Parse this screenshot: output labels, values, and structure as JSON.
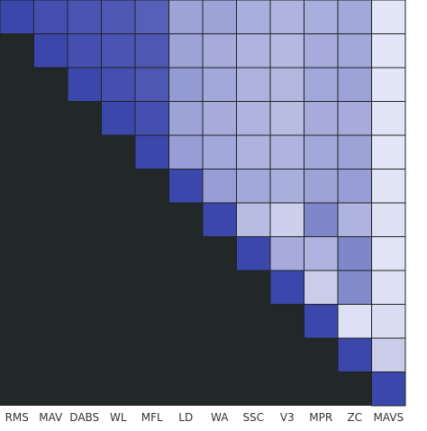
{
  "chart_data": {
    "type": "heatmap",
    "title": "",
    "xlabel": "",
    "ylabel": "",
    "categories": [
      "RMS",
      "MAV",
      "DABS",
      "WL",
      "MFL",
      "LD",
      "WA",
      "SSC",
      "V3",
      "MPR",
      "ZC",
      "MAVS"
    ],
    "masked_color": "#222827",
    "grid_color": "#1e2323",
    "colors": {
      "low": "#eceefa",
      "high": "#3c47ac"
    },
    "color_range": [
      0,
      1
    ],
    "rows": [
      [
        1.0,
        0.95,
        0.92,
        0.9,
        0.85,
        0.45,
        0.45,
        0.38,
        0.35,
        0.38,
        0.42,
        0.05
      ],
      [
        null,
        1.0,
        0.95,
        0.92,
        0.9,
        0.45,
        0.4,
        0.35,
        0.32,
        0.4,
        0.42,
        0.05
      ],
      [
        null,
        null,
        1.0,
        0.95,
        0.9,
        0.5,
        0.42,
        0.36,
        0.33,
        0.42,
        0.45,
        0.05
      ],
      [
        null,
        null,
        null,
        1.0,
        0.95,
        0.45,
        0.4,
        0.35,
        0.3,
        0.4,
        0.4,
        0.06
      ],
      [
        null,
        null,
        null,
        null,
        1.0,
        0.48,
        0.42,
        0.36,
        0.35,
        0.42,
        0.45,
        0.05
      ],
      [
        null,
        null,
        null,
        null,
        null,
        1.0,
        0.48,
        0.42,
        0.38,
        0.45,
        0.48,
        0.06
      ],
      [
        null,
        null,
        null,
        null,
        null,
        null,
        1.0,
        0.3,
        0.18,
        0.62,
        0.35,
        0.08
      ],
      [
        null,
        null,
        null,
        null,
        null,
        null,
        null,
        1.0,
        0.4,
        0.35,
        0.62,
        0.06
      ],
      [
        null,
        null,
        null,
        null,
        null,
        null,
        null,
        null,
        1.0,
        0.2,
        0.6,
        0.08
      ],
      [
        null,
        null,
        null,
        null,
        null,
        null,
        null,
        null,
        null,
        1.0,
        0.08,
        0.1
      ],
      [
        null,
        null,
        null,
        null,
        null,
        null,
        null,
        null,
        null,
        null,
        1.0,
        0.2
      ],
      [
        null,
        null,
        null,
        null,
        null,
        null,
        null,
        null,
        null,
        null,
        null,
        1.0
      ]
    ]
  }
}
